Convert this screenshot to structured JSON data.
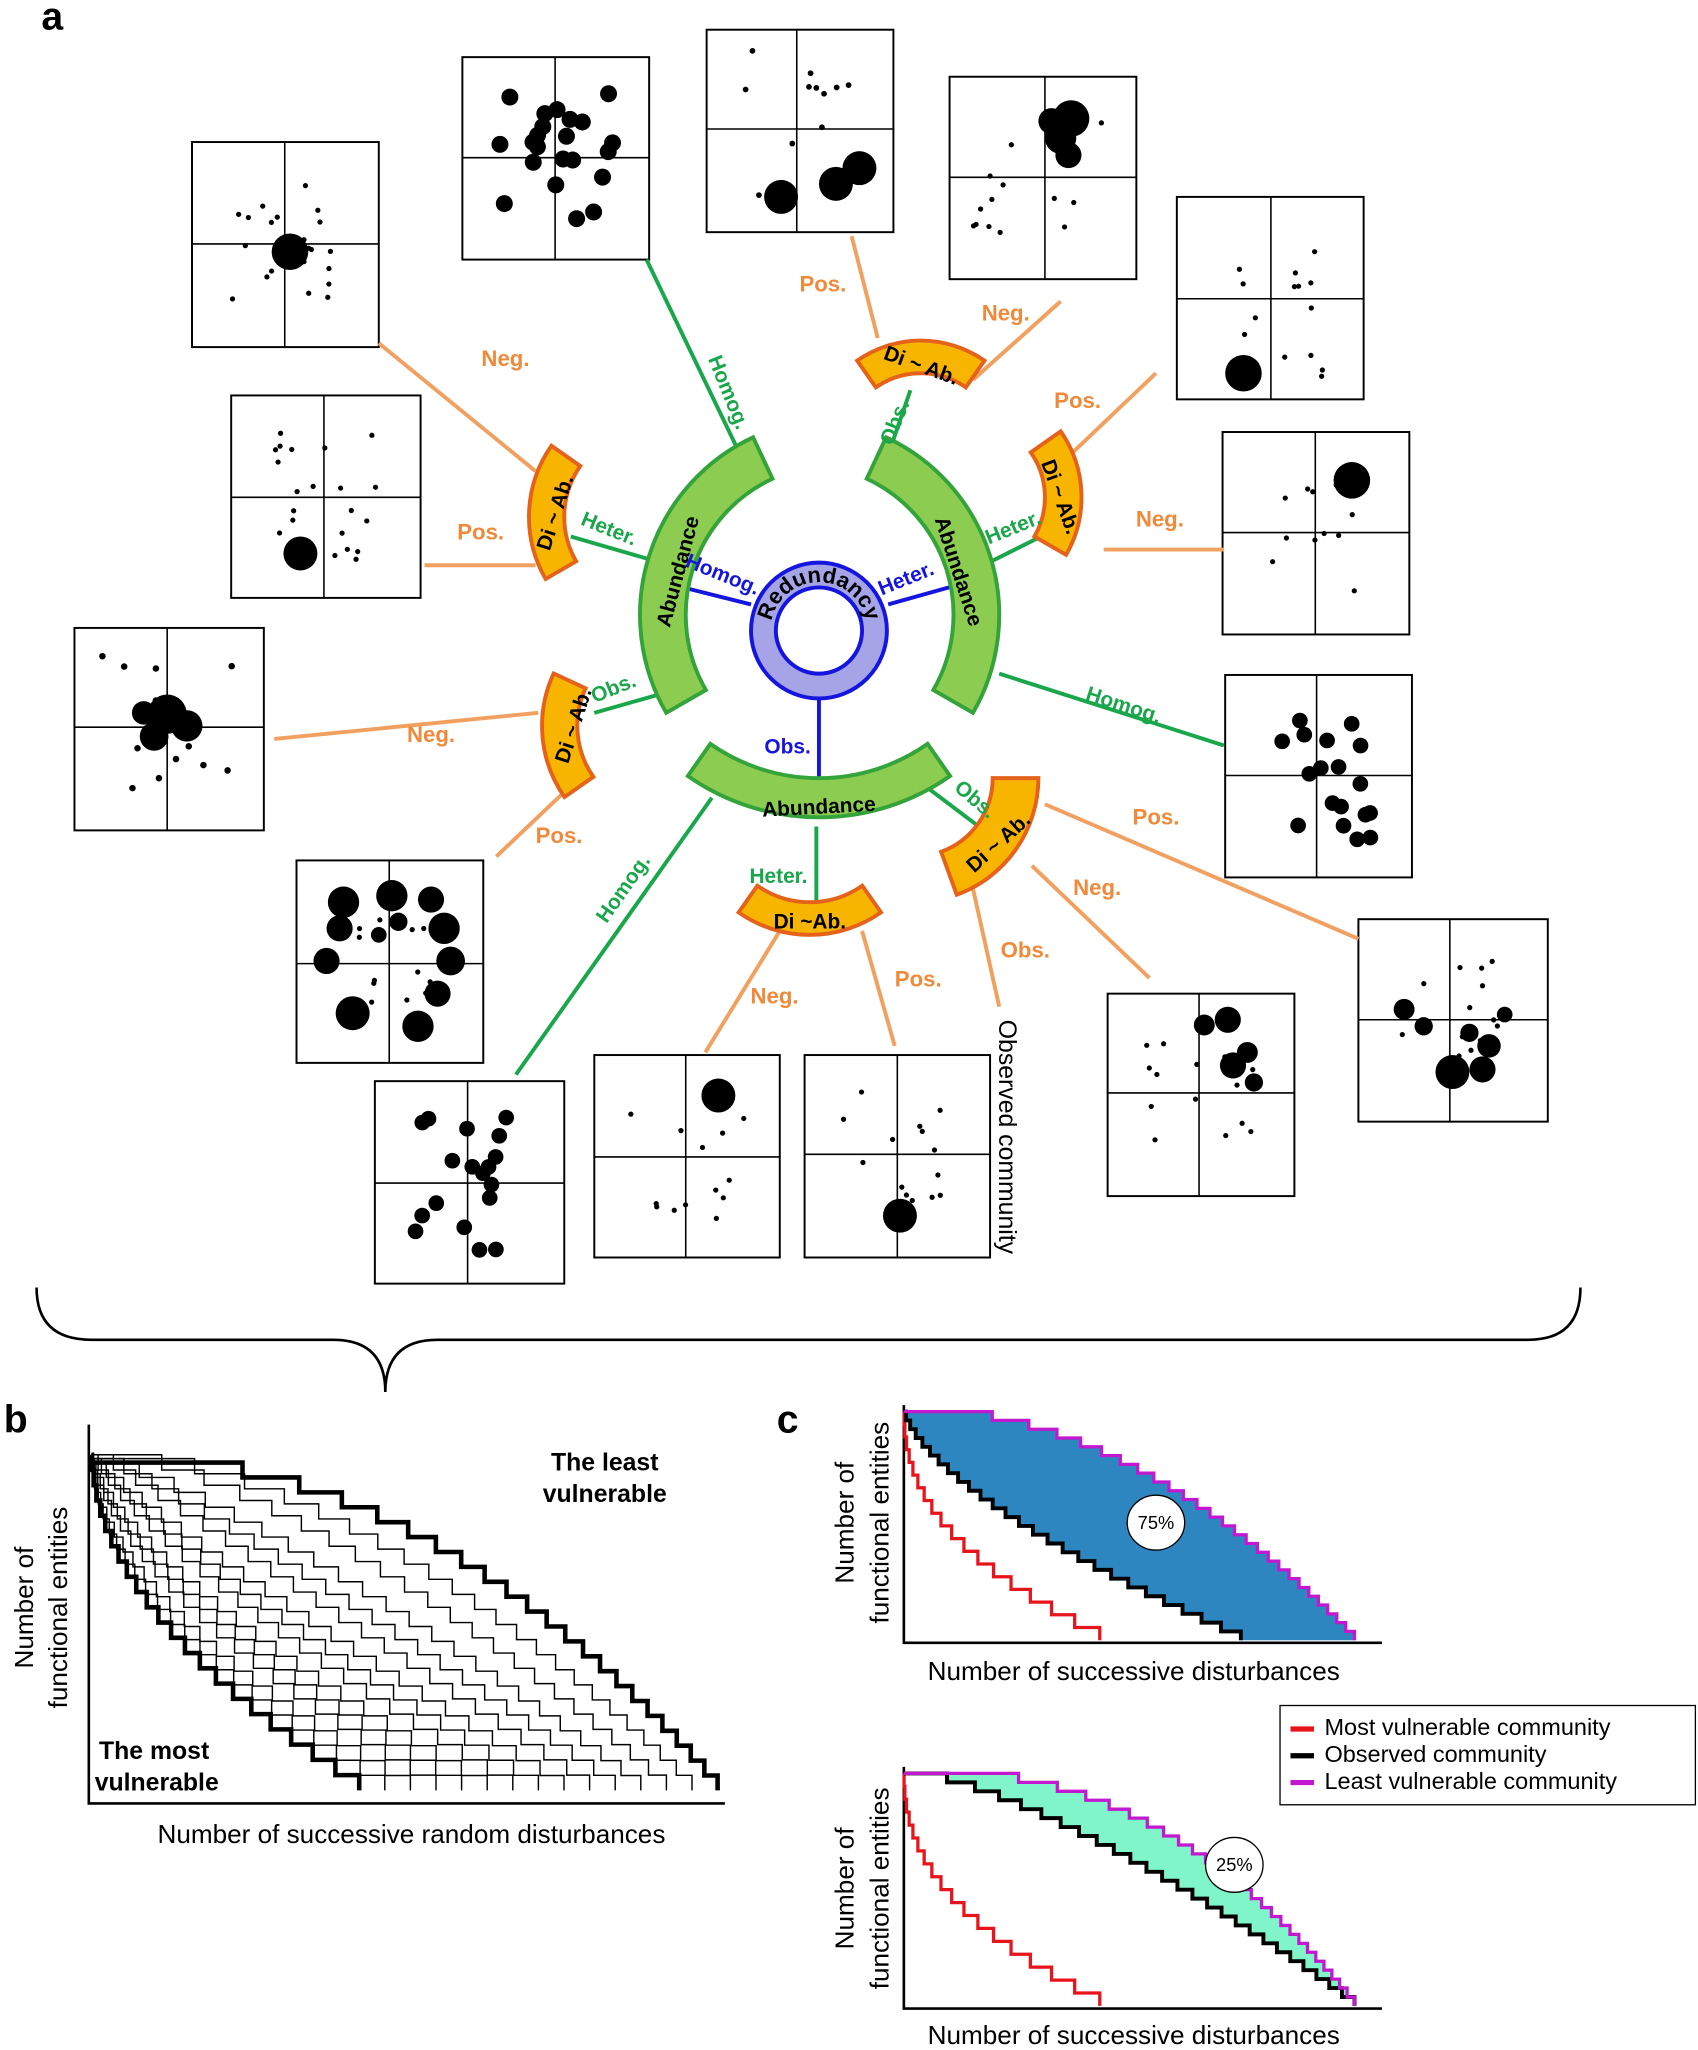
{
  "panel_a": {
    "label": "a",
    "center": {
      "label": "Redundancy",
      "branches": [
        "Homog.",
        "Heter.",
        "Obs."
      ]
    },
    "abundance": [
      {
        "label": "Abundance",
        "branches": [
          "Homog.",
          "Heter.",
          "Obs."
        ]
      },
      {
        "label": "Abundance",
        "branches": [
          "Obs.",
          "Heter.",
          "Homog."
        ]
      },
      {
        "label": "Abundance",
        "branches": [
          "Homog.",
          "Heter.",
          "Obs."
        ]
      }
    ],
    "di_ab": [
      {
        "label": "Di ~ Ab.",
        "branches": [
          "Neg.",
          "Pos."
        ]
      },
      {
        "label": "Di ~ Ab.",
        "branches": [
          "Neg.",
          "Pos."
        ]
      },
      {
        "label": "Di ~ Ab.",
        "branches": [
          "Pos.",
          "Neg."
        ]
      },
      {
        "label": "Di ~ Ab.",
        "branches": [
          "Pos.",
          "Neg."
        ]
      },
      {
        "label": "Di ~Ab.",
        "branches": [
          "Neg.",
          "Pos."
        ]
      },
      {
        "label": "Di ~ Ab.",
        "branches": [
          "Pos.",
          "Neg.",
          "Obs."
        ]
      }
    ],
    "observed": "Observed community"
  },
  "panel_b": {
    "label": "b",
    "y_label": [
      "Number of",
      "functional entities"
    ],
    "x_label": "Number of successive random disturbances",
    "least": [
      "The least",
      "vulnerable"
    ],
    "most": [
      "The most",
      "vulnerable"
    ]
  },
  "panel_c": {
    "label": "c",
    "top": {
      "y_label": [
        "Number of",
        "functional entities"
      ],
      "x_label": "Number of successive disturbances",
      "area": "75%"
    },
    "bottom": {
      "y_label": [
        "Number of",
        "functional entities"
      ],
      "x_label": "Number of successive disturbances",
      "area": "25%"
    },
    "legend": [
      "Most vulnerable community",
      "Observed community",
      "Least vulnerable community"
    ]
  }
}
